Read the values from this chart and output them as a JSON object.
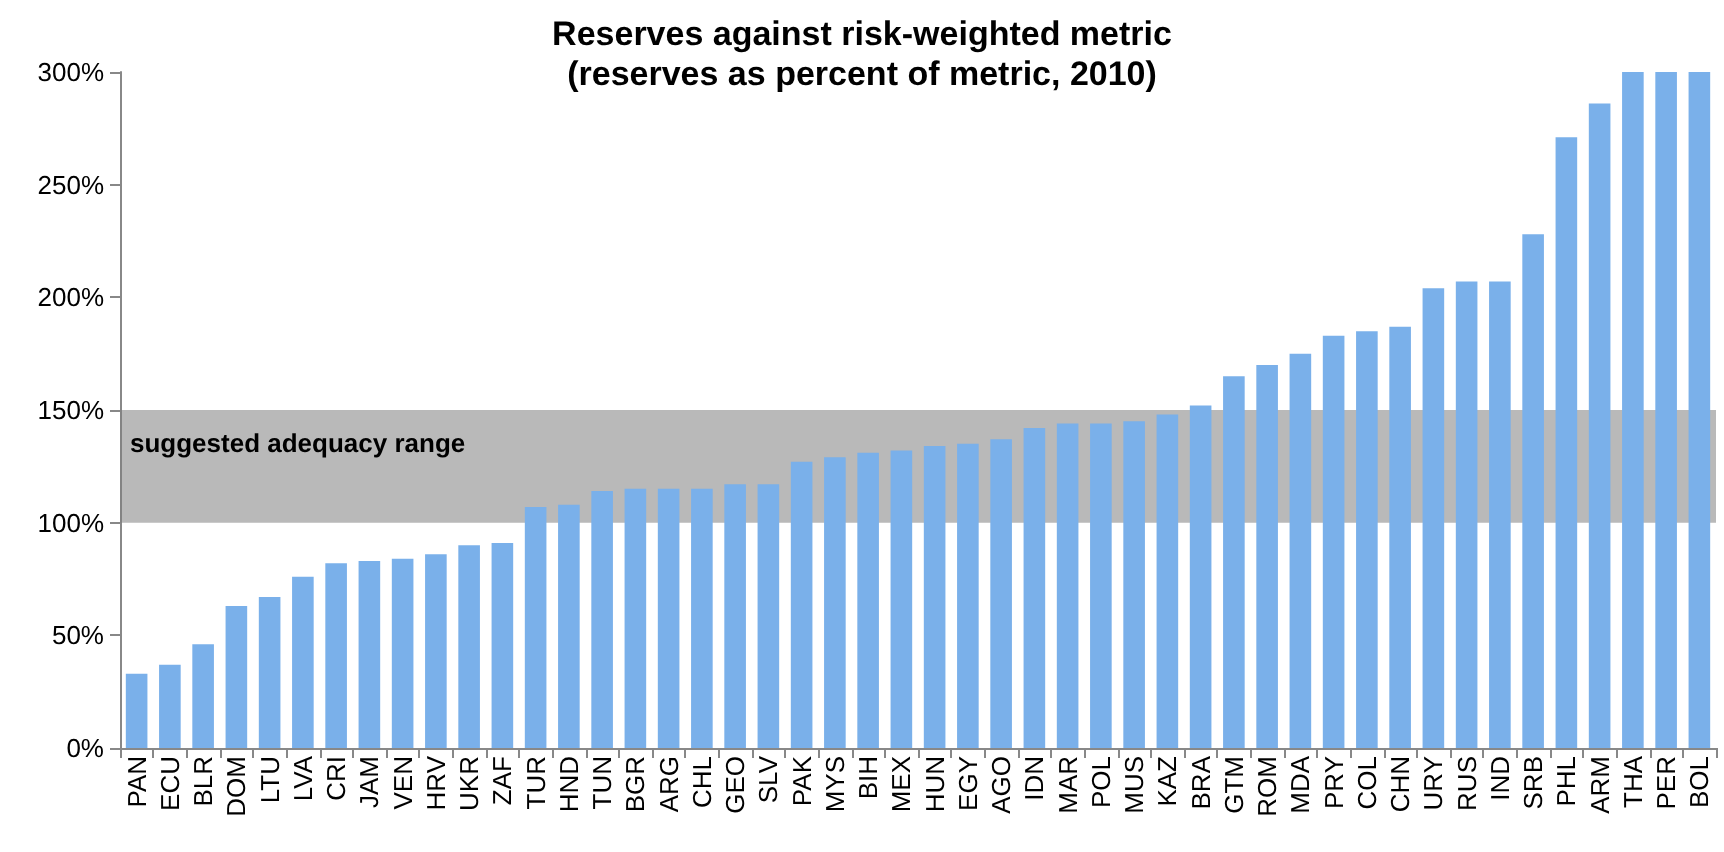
{
  "chart_data": {
    "type": "bar",
    "title": "Reserves against risk-weighted metric\n(reserves as percent of metric, 2010)",
    "categories": [
      "PAN",
      "ECU",
      "BLR",
      "DOM",
      "LTU",
      "LVA",
      "CRI",
      "JAM",
      "VEN",
      "HRV",
      "UKR",
      "ZAF",
      "TUR",
      "HND",
      "TUN",
      "BGR",
      "ARG",
      "CHL",
      "GEO",
      "SLV",
      "PAK",
      "MYS",
      "BIH",
      "MEX",
      "HUN",
      "EGY",
      "AGO",
      "IDN",
      "MAR",
      "POL",
      "MUS",
      "KAZ",
      "BRA",
      "GTM",
      "ROM",
      "MDA",
      "PRY",
      "COL",
      "CHN",
      "URY",
      "RUS",
      "IND",
      "SRB",
      "PHL",
      "ARM",
      "THA",
      "PER",
      "BOL"
    ],
    "values": [
      33,
      37,
      46,
      63,
      67,
      76,
      82,
      83,
      84,
      86,
      90,
      91,
      107,
      108,
      114,
      115,
      115,
      115,
      117,
      117,
      127,
      129,
      131,
      132,
      134,
      135,
      137,
      142,
      144,
      144,
      145,
      148,
      152,
      165,
      170,
      175,
      183,
      185,
      187,
      204,
      207,
      207,
      228,
      271,
      286,
      300,
      300,
      300
    ],
    "color": "#7ab0ea",
    "ylim": [
      0,
      300
    ],
    "yticks": [
      {
        "value": 0,
        "label": "0%"
      },
      {
        "value": 50,
        "label": "50%"
      },
      {
        "value": 100,
        "label": "100%"
      },
      {
        "value": 150,
        "label": "150%"
      },
      {
        "value": 200,
        "label": "200%"
      },
      {
        "value": 250,
        "label": "250%"
      },
      {
        "value": 300,
        "label": "300%"
      }
    ],
    "bands": [
      {
        "axis": "y",
        "from": 100,
        "to": 150,
        "label": "suggested adequacy range",
        "color": "#808080"
      }
    ],
    "grid": false
  }
}
